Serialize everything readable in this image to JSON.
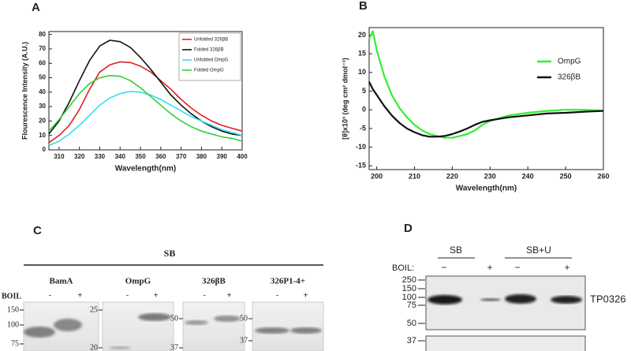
{
  "chart_data": [
    {
      "type": "line",
      "panel": "A",
      "xlabel": "Wavelength(nm)",
      "ylabel": "Flourescence Intensity (A.U.)",
      "x": [
        305,
        310,
        315,
        320,
        325,
        330,
        335,
        340,
        345,
        350,
        355,
        360,
        365,
        370,
        375,
        380,
        385,
        390,
        395,
        400
      ],
      "series": [
        {
          "name": "Unfolded 326βB",
          "color": "#e02020",
          "values": [
            5,
            10,
            17,
            28,
            42,
            54,
            59,
            61,
            60.5,
            58,
            54,
            48,
            42,
            35,
            29,
            24,
            20,
            17,
            15,
            13
          ]
        },
        {
          "name": "Folded 326βB",
          "color": "#111111",
          "values": [
            11,
            20,
            33,
            48,
            62,
            72,
            76,
            75,
            71,
            64,
            56,
            47,
            38,
            31,
            25,
            20,
            16,
            13,
            11,
            10
          ]
        },
        {
          "name": "Unfolded OmpG",
          "color": "#30e0f0",
          "values": [
            3,
            6,
            11,
            17,
            24,
            31,
            36,
            39,
            40.5,
            40,
            38,
            35,
            31,
            27,
            23,
            20,
            17,
            14,
            12,
            10
          ]
        },
        {
          "name": "Folded OmpG",
          "color": "#30d030",
          "values": [
            13,
            21,
            30,
            39,
            46,
            50,
            51.5,
            51,
            48,
            43,
            37,
            31,
            25,
            20,
            16,
            13,
            11,
            9,
            8,
            6
          ]
        }
      ],
      "xlim": [
        305,
        400
      ],
      "xticks": [
        310,
        320,
        330,
        340,
        350,
        360,
        370,
        380,
        390,
        400
      ],
      "ylim": [
        0,
        82
      ],
      "yticks": [
        0,
        10,
        20,
        30,
        40,
        50,
        60,
        70,
        80
      ],
      "legend": "upper right"
    },
    {
      "type": "line",
      "panel": "B",
      "xlabel": "Wavelength(nm)",
      "ylabel": "[θ]x10³ (deg cm² dmol⁻¹)",
      "x": [
        198,
        199,
        200,
        202,
        204,
        206,
        208,
        210,
        212,
        214,
        216,
        218,
        220,
        222,
        224,
        226,
        228,
        230,
        235,
        240,
        245,
        250,
        255,
        260
      ],
      "series": [
        {
          "name": "OmpG",
          "color": "#33ee33",
          "values": [
            19,
            21,
            16,
            9,
            4,
            0.5,
            -2,
            -4,
            -5.5,
            -6.5,
            -7,
            -7.5,
            -7.5,
            -7,
            -6.5,
            -5.5,
            -4,
            -3,
            -1.5,
            -0.8,
            -0.3,
            0,
            0,
            -0.2
          ]
        },
        {
          "name": "326βB",
          "color": "#111111",
          "values": [
            7.5,
            5.5,
            4,
            1,
            -1.5,
            -3.5,
            -5,
            -6,
            -6.8,
            -7.2,
            -7.2,
            -7,
            -6.5,
            -5.8,
            -5,
            -4,
            -3.2,
            -2.8,
            -2,
            -1.5,
            -1,
            -0.8,
            -0.5,
            -0.3
          ]
        }
      ],
      "xlim": [
        198,
        260
      ],
      "xticks": [
        200,
        210,
        220,
        230,
        240,
        250,
        260
      ],
      "ylim": [
        -16,
        22
      ],
      "yticks": [
        -15,
        -10,
        -5,
        0,
        5,
        10,
        15,
        20
      ],
      "legend": "right"
    }
  ],
  "panel_c": {
    "label": "C",
    "group": "SB",
    "boil": "BOIL",
    "gels": [
      {
        "name": "BamA",
        "lanes": [
          "-",
          "+"
        ],
        "markers": [
          150,
          100,
          75
        ]
      },
      {
        "name": "OmpG",
        "lanes": [
          "-",
          "+"
        ],
        "markers": [
          25,
          20
        ]
      },
      {
        "name": "326βB",
        "lanes": [
          "-",
          "+"
        ],
        "markers": [
          50,
          37
        ]
      },
      {
        "name": "326P1-4+",
        "lanes": [
          "-",
          "+"
        ],
        "markers": [
          50,
          37
        ]
      }
    ]
  },
  "panel_d": {
    "label": "D",
    "groups": [
      "SB",
      "SB+U"
    ],
    "boil": "BOIL:",
    "lanes": [
      "−",
      "+",
      "−",
      "+"
    ],
    "markers": [
      250,
      150,
      100,
      75,
      50,
      37
    ],
    "protein": "TP0326"
  }
}
